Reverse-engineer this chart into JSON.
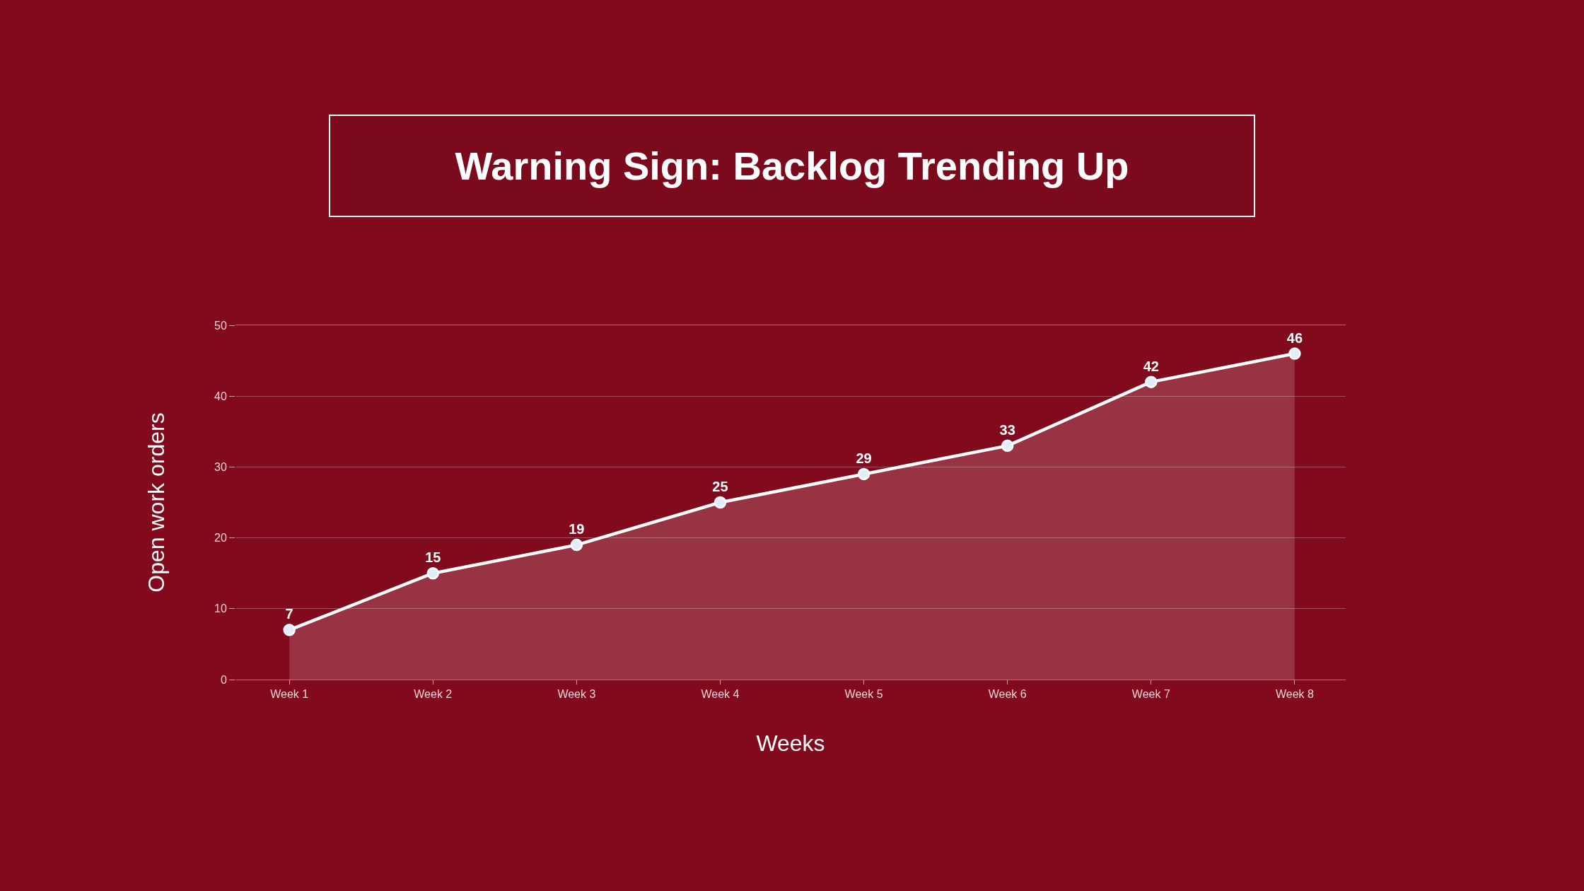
{
  "chart_data": {
    "type": "area",
    "title": "Warning Sign: Backlog Trending Up",
    "xlabel": "Weeks",
    "ylabel": "Open work orders",
    "categories": [
      "Week 1",
      "Week 2",
      "Week 3",
      "Week 4",
      "Week 5",
      "Week 6",
      "Week 7",
      "Week 8"
    ],
    "series": [
      {
        "color": "#ffffff",
        "values": [
          7,
          15,
          19,
          25,
          29,
          33,
          42,
          46
        ]
      }
    ],
    "ylim": [
      0,
      50
    ],
    "yticks": [
      0,
      10,
      20,
      30,
      40,
      50
    ],
    "grid": "y",
    "marker": "circle",
    "line_style": "solid",
    "data_labels": true
  }
}
